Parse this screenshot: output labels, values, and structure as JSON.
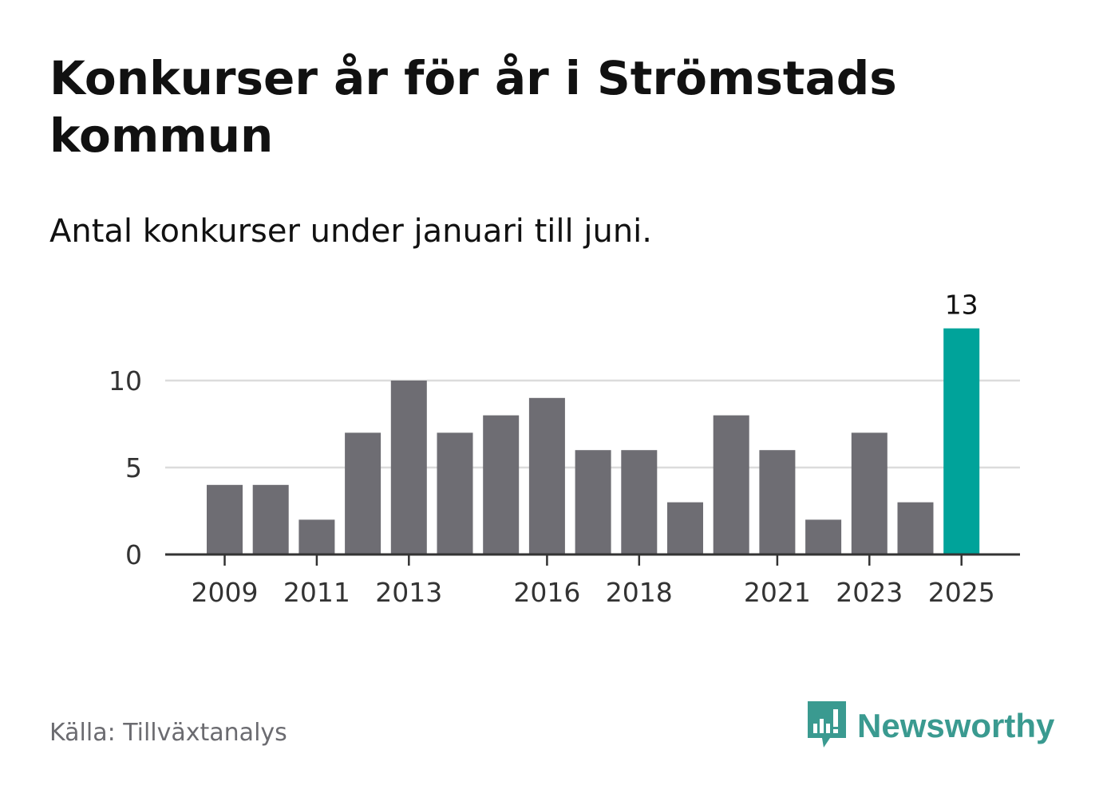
{
  "title": "Konkurser år för år i Strömstads kommun",
  "subtitle": "Antal konkurser under januari till juni.",
  "source": "Källa: Tillväxtanalys",
  "brand": {
    "name": "Newsworthy",
    "icon": "newsworthy-logo-icon",
    "color": "#3a9a90"
  },
  "colors": {
    "bar": "#6e6d73",
    "highlight": "#00a39a",
    "grid": "#dcdcdc",
    "axis": "#333333",
    "text": "#333333"
  },
  "chart_data": {
    "type": "bar",
    "title": "Konkurser år för år i Strömstads kommun",
    "subtitle": "Antal konkurser under januari till juni.",
    "xlabel": "",
    "ylabel": "",
    "categories": [
      2009,
      2010,
      2011,
      2012,
      2013,
      2014,
      2015,
      2016,
      2017,
      2018,
      2019,
      2020,
      2021,
      2022,
      2023,
      2024,
      2025
    ],
    "values": [
      4,
      4,
      2,
      7,
      10,
      7,
      8,
      9,
      6,
      6,
      3,
      8,
      6,
      2,
      7,
      3,
      13
    ],
    "ylim": [
      0,
      13
    ],
    "yticks": [
      0,
      5,
      10
    ],
    "xtick_labels": [
      "2009",
      "2011",
      "2013",
      "2016",
      "2018",
      "2021",
      "2023",
      "2025"
    ],
    "highlight": {
      "category": 2025,
      "label": "13"
    },
    "grid": true,
    "legend": "none"
  }
}
